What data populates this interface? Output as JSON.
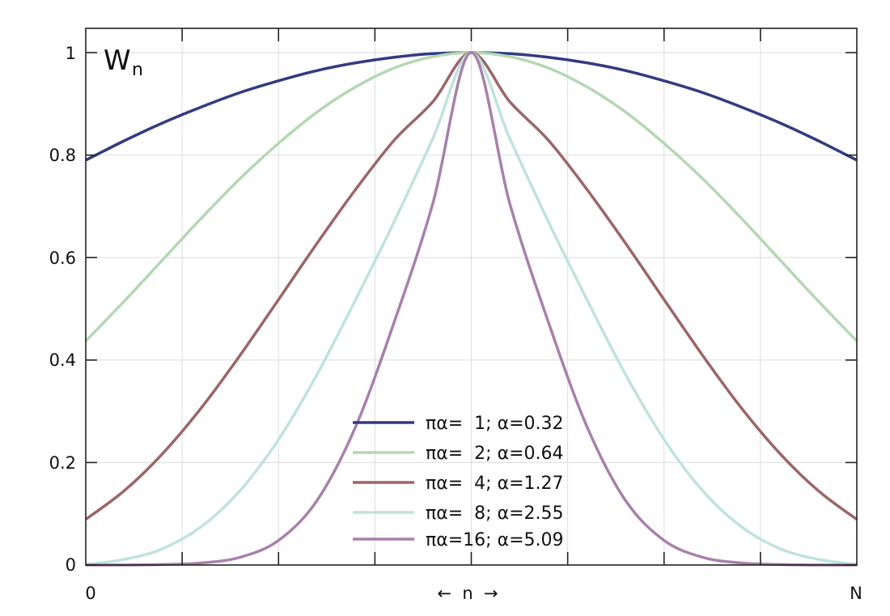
{
  "chart_data": {
    "type": "line",
    "title_main": "W",
    "title_sub": "n",
    "x_label": "←  n  →",
    "x_tick_labels": [
      "0",
      "N"
    ],
    "y_ticks": [
      0,
      0.2,
      0.4,
      0.6,
      0.8,
      1
    ],
    "y_tick_labels": [
      "0",
      "0.2",
      "0.4",
      "0.6",
      "0.8",
      "1"
    ],
    "xlim": [
      0,
      1
    ],
    "ylim": [
      0,
      1.05
    ],
    "grid": true,
    "legend_position": "bottom-center",
    "x": [
      0,
      0.05,
      0.1,
      0.15,
      0.2,
      0.25,
      0.3,
      0.35,
      0.4,
      0.45,
      0.5,
      0.55,
      0.6,
      0.65,
      0.7,
      0.75,
      0.8,
      0.85,
      0.9,
      0.95,
      1
    ],
    "series": [
      {
        "name": "πα=  1; α=0.32",
        "color": "#343a80",
        "values": [
          0.79,
          0.828,
          0.863,
          0.894,
          0.922,
          0.945,
          0.965,
          0.98,
          0.991,
          0.998,
          1.0,
          0.998,
          0.991,
          0.98,
          0.965,
          0.945,
          0.922,
          0.894,
          0.863,
          0.828,
          0.79
        ]
      },
      {
        "name": "πα=  2; α=0.64",
        "color": "#b4d8b2",
        "values": [
          0.437,
          0.515,
          0.596,
          0.677,
          0.754,
          0.823,
          0.884,
          0.933,
          0.97,
          0.992,
          1.0,
          0.992,
          0.97,
          0.933,
          0.884,
          0.823,
          0.754,
          0.677,
          0.596,
          0.515,
          0.437
        ]
      },
      {
        "name": "πα=  4; α=1.27",
        "color": "#9c6568",
        "values": [
          0.089,
          0.145,
          0.218,
          0.307,
          0.409,
          0.518,
          0.628,
          0.733,
          0.829,
          0.904,
          1.0,
          0.904,
          0.829,
          0.733,
          0.628,
          0.518,
          0.409,
          0.307,
          0.218,
          0.145,
          0.089
        ]
      },
      {
        "name": "πα=  8; α=2.55",
        "color": "#bfe3dc",
        "values": [
          0.001,
          0.011,
          0.032,
          0.075,
          0.145,
          0.245,
          0.372,
          0.518,
          0.67,
          0.832,
          1.0,
          0.832,
          0.67,
          0.518,
          0.372,
          0.245,
          0.145,
          0.075,
          0.032,
          0.011,
          0.001
        ]
      },
      {
        "name": "πα=16; α=5.09",
        "color": "#a880ac",
        "values": [
          0.0,
          0.0,
          0.001,
          0.004,
          0.015,
          0.048,
          0.126,
          0.27,
          0.474,
          0.705,
          1.0,
          0.705,
          0.474,
          0.27,
          0.126,
          0.048,
          0.015,
          0.004,
          0.001,
          0.0,
          0.0
        ]
      }
    ]
  }
}
